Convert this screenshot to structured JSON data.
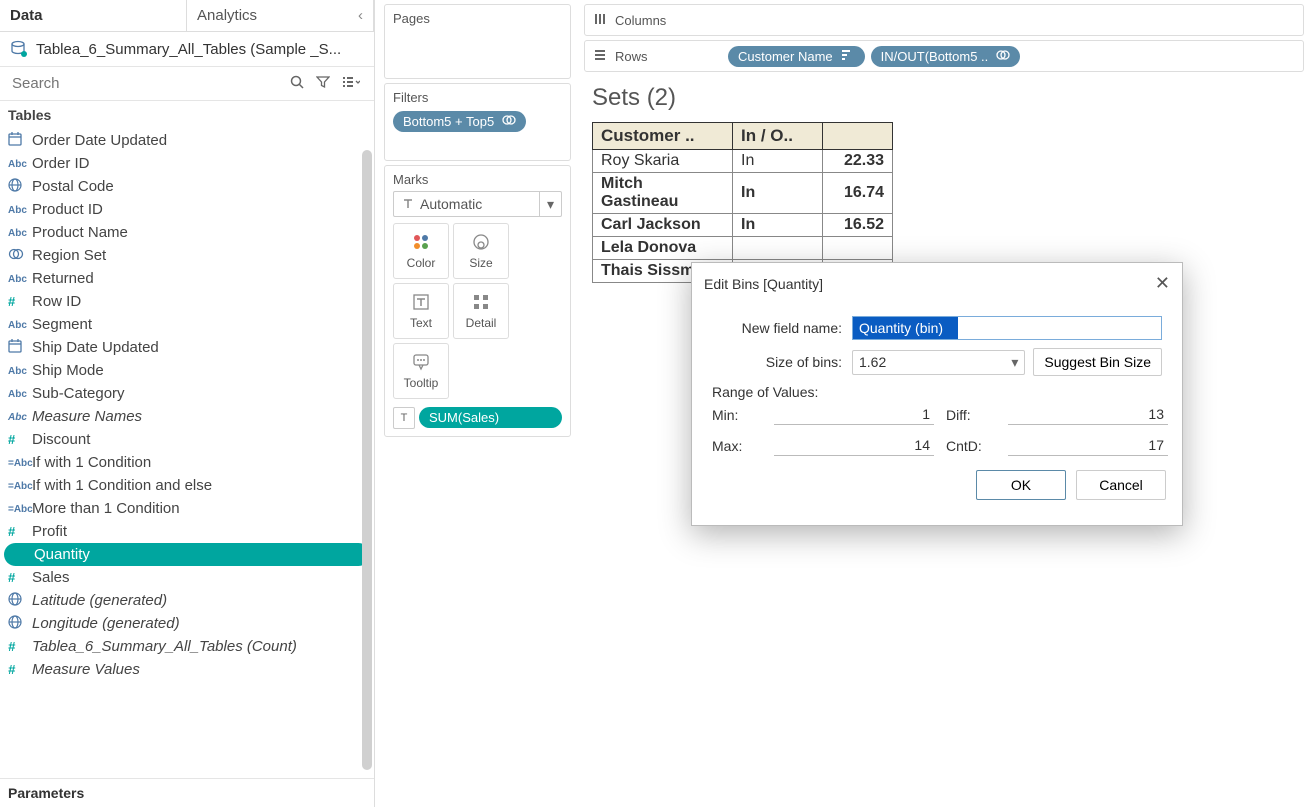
{
  "tabs": {
    "data": "Data",
    "analytics": "Analytics"
  },
  "datasource": "Tablea_6_Summary_All_Tables (Sample _S...",
  "search": {
    "placeholder": "Search"
  },
  "tables_header": "Tables",
  "parameters_header": "Parameters",
  "fields": [
    {
      "icon": "date",
      "label": "Order Date Updated"
    },
    {
      "icon": "abc",
      "label": "Order ID"
    },
    {
      "icon": "globe",
      "label": "Postal Code"
    },
    {
      "icon": "abc",
      "label": "Product ID"
    },
    {
      "icon": "abc",
      "label": "Product Name"
    },
    {
      "icon": "set",
      "label": "Region Set"
    },
    {
      "icon": "abc",
      "label": "Returned"
    },
    {
      "icon": "hash",
      "label": "Row ID"
    },
    {
      "icon": "abc",
      "label": "Segment"
    },
    {
      "icon": "date",
      "label": "Ship Date Updated"
    },
    {
      "icon": "abc",
      "label": "Ship Mode"
    },
    {
      "icon": "abc",
      "label": "Sub-Category"
    },
    {
      "icon": "abc",
      "label": "Measure Names",
      "italic": true
    },
    {
      "icon": "hash",
      "label": "Discount"
    },
    {
      "icon": "calc",
      "label": "If with 1 Condition"
    },
    {
      "icon": "calc",
      "label": "If with 1 Condition and else"
    },
    {
      "icon": "calc",
      "label": "More than 1 Condition"
    },
    {
      "icon": "hash",
      "label": "Profit"
    },
    {
      "icon": "hash",
      "label": "Quantity",
      "selected": true
    },
    {
      "icon": "hash",
      "label": "Sales"
    },
    {
      "icon": "globe",
      "label": "Latitude (generated)",
      "italic": true
    },
    {
      "icon": "globe",
      "label": "Longitude (generated)",
      "italic": true
    },
    {
      "icon": "hash",
      "label": "Tablea_6_Summary_All_Tables (Count)",
      "italic": true
    },
    {
      "icon": "hash",
      "label": "Measure Values",
      "italic": true
    }
  ],
  "shelves": {
    "pages": "Pages",
    "filters": "Filters",
    "filter_pill": "Bottom5 + Top5",
    "marks": "Marks",
    "marks_type": "Automatic",
    "mark_btns": [
      "Color",
      "Size",
      "Text",
      "Detail",
      "Tooltip"
    ],
    "mark_pill": "SUM(Sales)",
    "columns": "Columns",
    "rows": "Rows",
    "row_pills": [
      "Customer Name",
      "IN/OUT(Bottom5 .."
    ]
  },
  "viz": {
    "title": "Sets (2)",
    "headers": [
      "Customer ..",
      "In / O..",
      ""
    ],
    "rows": [
      {
        "name": "Roy Skaria",
        "io": "In",
        "val": "22.33",
        "bold": false
      },
      {
        "name": "Mitch Gastineau",
        "io": "In",
        "val": "16.74",
        "bold": true
      },
      {
        "name": "Carl Jackson",
        "io": "In",
        "val": "16.52",
        "bold": true
      },
      {
        "name": "Lela Donova",
        "io": "",
        "val": "",
        "bold": true
      },
      {
        "name": "Thais Sissm",
        "io": "",
        "val": "",
        "bold": true
      }
    ]
  },
  "dialog": {
    "title": "Edit Bins [Quantity]",
    "field_name_label": "New field name:",
    "field_name_value": "Quantity (bin)",
    "bin_size_label": "Size of bins:",
    "bin_size_value": "1.62",
    "suggest_btn": "Suggest Bin Size",
    "range_header": "Range of Values:",
    "min_label": "Min:",
    "min_val": "1",
    "max_label": "Max:",
    "max_val": "14",
    "diff_label": "Diff:",
    "diff_val": "13",
    "cntd_label": "CntD:",
    "cntd_val": "17",
    "ok": "OK",
    "cancel": "Cancel"
  },
  "colors": {
    "teal": "#00a69f",
    "blue_pill": "#5b8aa8",
    "header_bg": "#f0ead6"
  }
}
